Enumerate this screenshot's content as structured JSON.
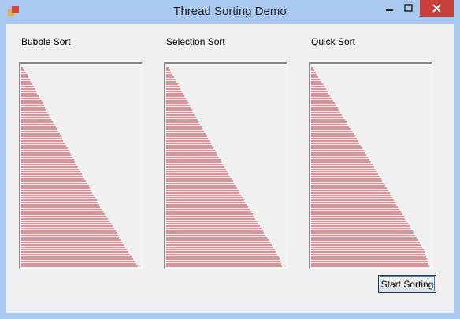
{
  "window": {
    "title": "Thread Sorting Demo"
  },
  "panels": [
    {
      "label": "Bubble Sort",
      "values": [
        2,
        4,
        6,
        8,
        9,
        11,
        12,
        14,
        16,
        18,
        19,
        20,
        22,
        24,
        26,
        28,
        29,
        30,
        31,
        33,
        35,
        37,
        38,
        40,
        42,
        44,
        45,
        47,
        49,
        51,
        52,
        53,
        55,
        57,
        59,
        61,
        62,
        63,
        65,
        67,
        68,
        70,
        72,
        73,
        75,
        77,
        78,
        80,
        82,
        84,
        86,
        87,
        88,
        90,
        92,
        94,
        96,
        97,
        99,
        100,
        102,
        104,
        106,
        108,
        110,
        112,
        114,
        116,
        118,
        120,
        122,
        123,
        124,
        126,
        128,
        130,
        132,
        134,
        136,
        138,
        140,
        142,
        144,
        146,
        148,
        150
      ]
    },
    {
      "label": "Selection Sort",
      "values": [
        3,
        5,
        6,
        8,
        10,
        12,
        13,
        15,
        17,
        18,
        20,
        21,
        23,
        25,
        27,
        28,
        30,
        31,
        33,
        34,
        36,
        38,
        40,
        41,
        43,
        45,
        46,
        48,
        50,
        52,
        53,
        55,
        57,
        58,
        60,
        62,
        64,
        65,
        67,
        69,
        70,
        72,
        74,
        76,
        77,
        79,
        81,
        83,
        85,
        86,
        88,
        90,
        92,
        93,
        95,
        97,
        99,
        100,
        102,
        104,
        106,
        108,
        110,
        111,
        113,
        115,
        117,
        119,
        121,
        123,
        124,
        126,
        128,
        130,
        132,
        134,
        136,
        138,
        139,
        141,
        143,
        144,
        145,
        146,
        147,
        150
      ]
    },
    {
      "label": "Quick Sort",
      "values": [
        2,
        4,
        6,
        7,
        9,
        11,
        13,
        15,
        17,
        19,
        21,
        22,
        24,
        26,
        28,
        30,
        32,
        34,
        35,
        37,
        39,
        41,
        43,
        45,
        46,
        48,
        50,
        52,
        54,
        56,
        58,
        60,
        61,
        63,
        65,
        67,
        69,
        70,
        72,
        74,
        76,
        78,
        80,
        81,
        83,
        85,
        87,
        89,
        90,
        92,
        94,
        96,
        98,
        100,
        101,
        103,
        105,
        107,
        108,
        110,
        112,
        114,
        116,
        118,
        119,
        121,
        123,
        125,
        127,
        129,
        130,
        132,
        134,
        136,
        138,
        139,
        141,
        143,
        144,
        145,
        146,
        147,
        148,
        149,
        150,
        151
      ]
    }
  ],
  "button": "Start Sorting"
}
